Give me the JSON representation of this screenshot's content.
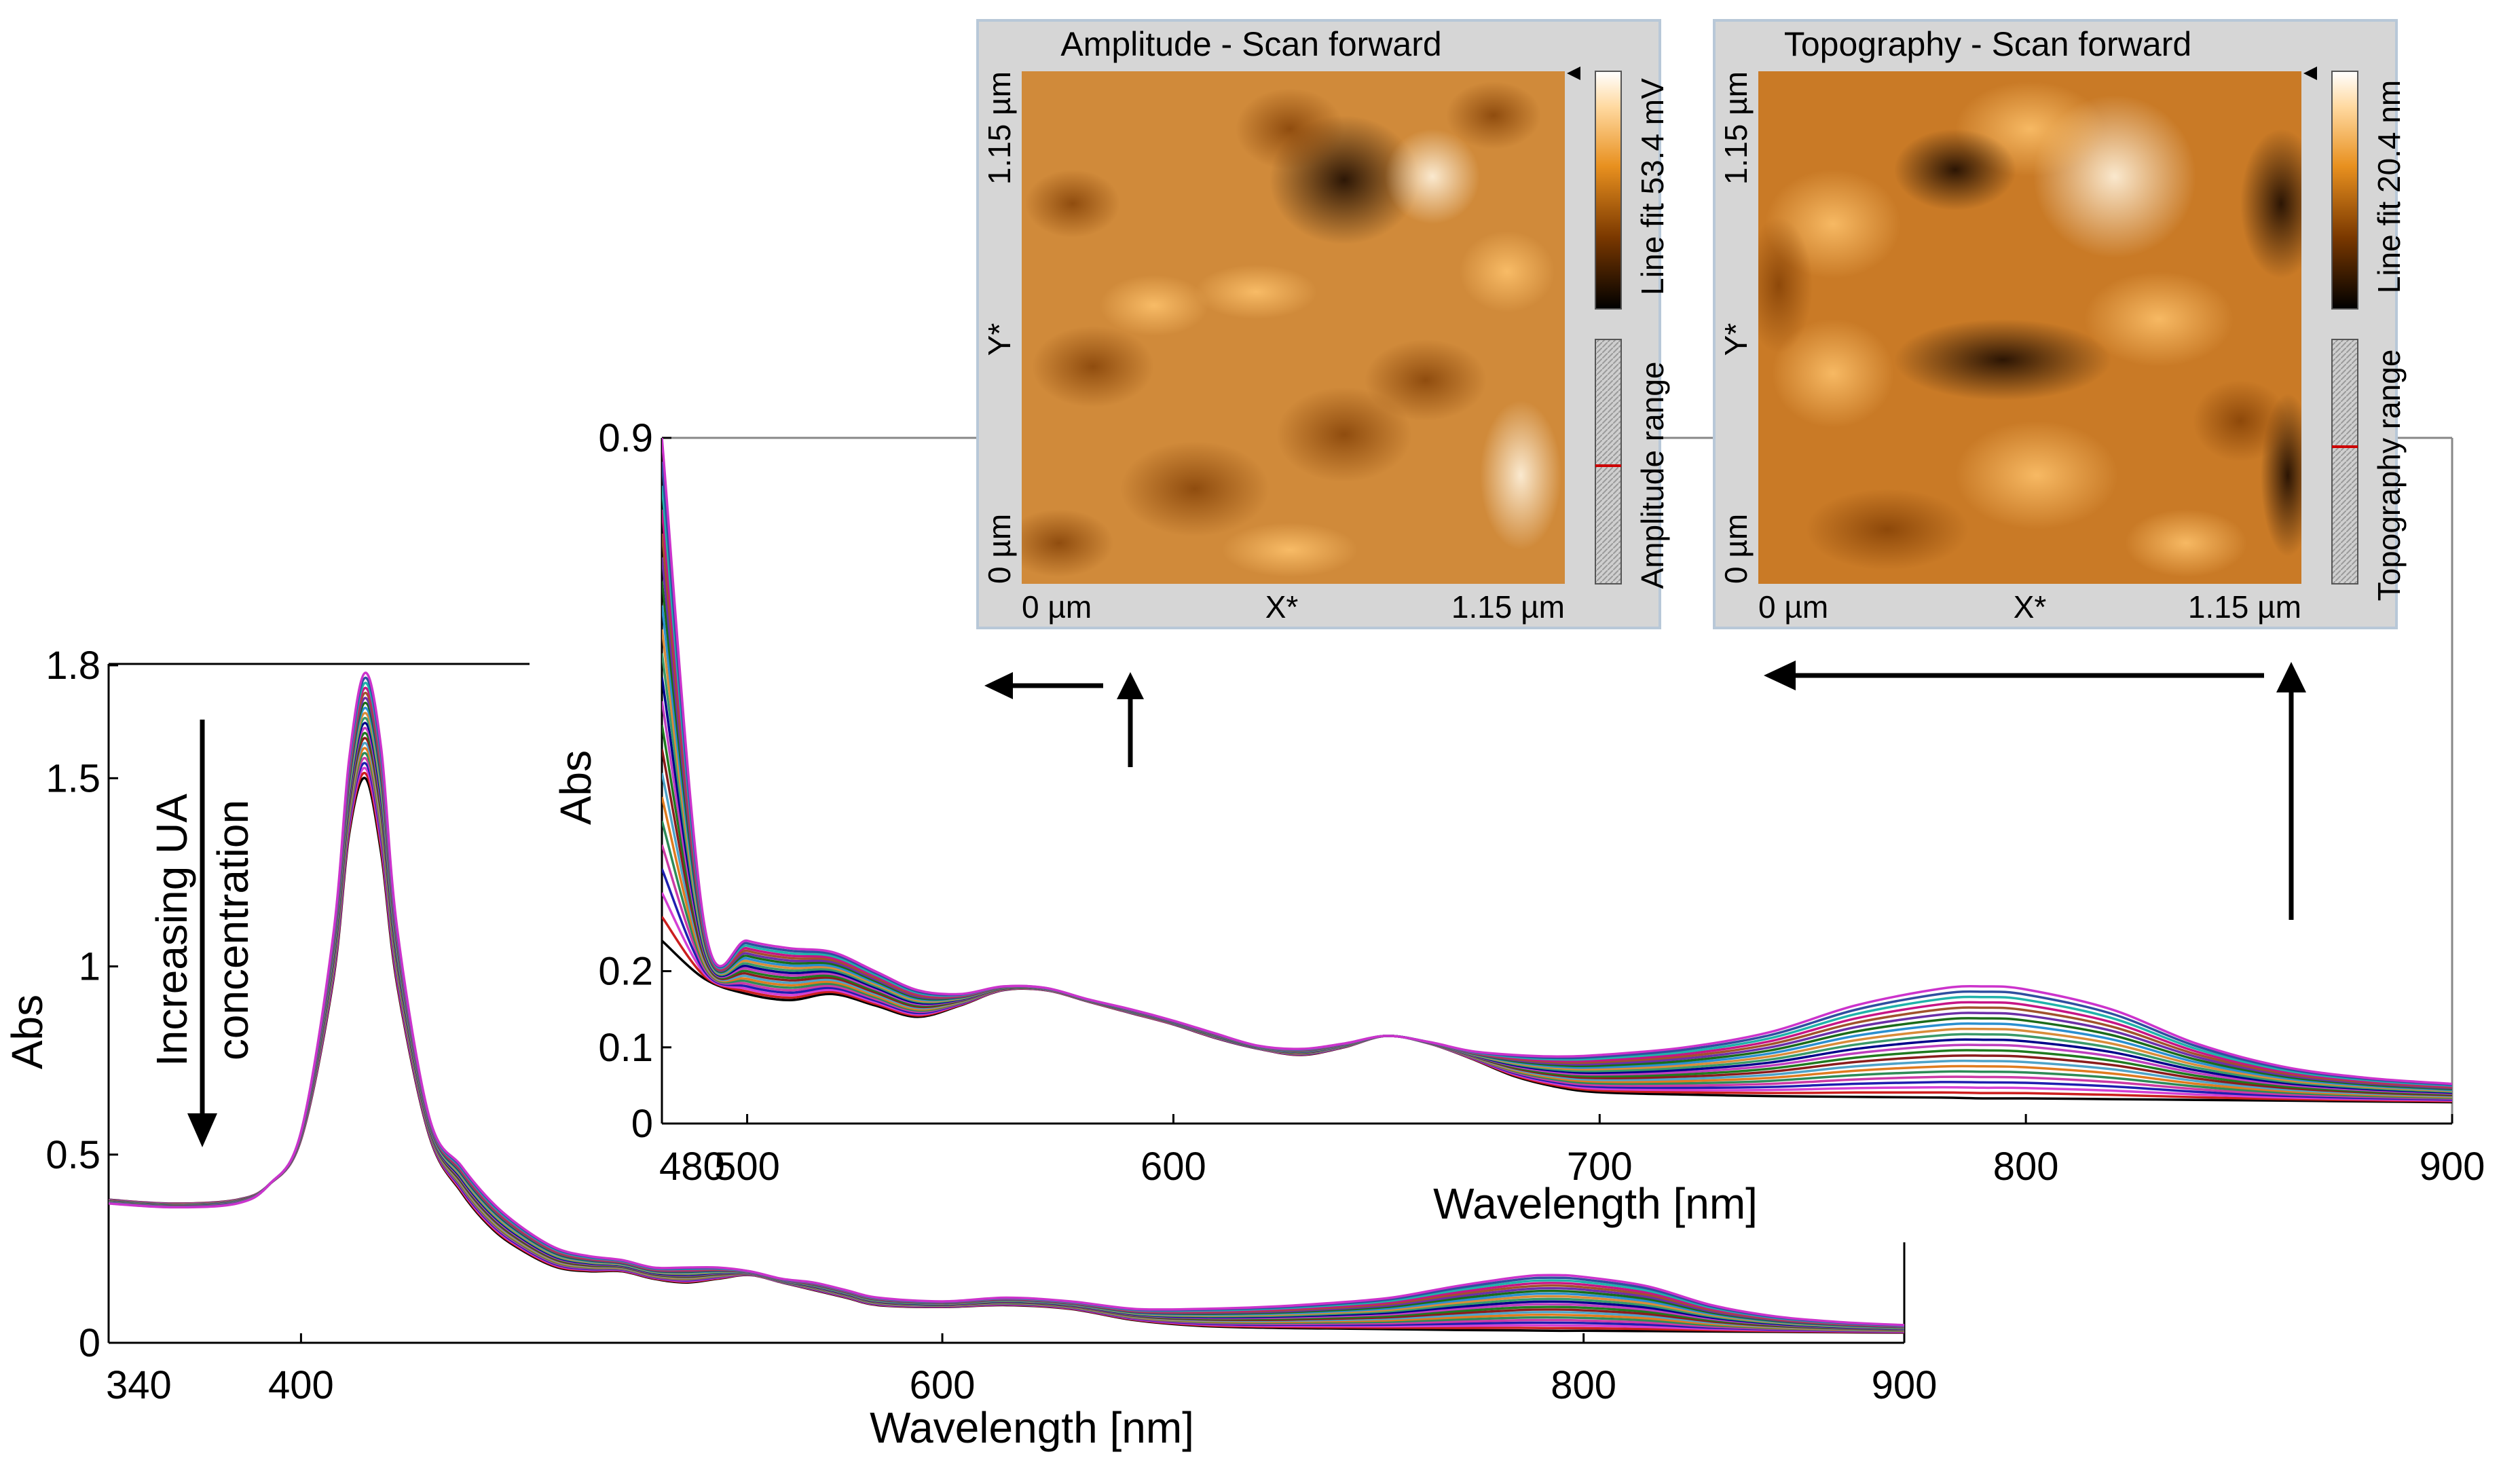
{
  "chart_data": [
    {
      "id": "main",
      "type": "line",
      "xlabel": "Wavelength [nm]",
      "ylabel": "Abs",
      "xlim": [
        340,
        900
      ],
      "ylim": [
        0,
        1.8
      ],
      "xticks": [
        340,
        400,
        600,
        800,
        900
      ],
      "yticks": [
        {
          "v": 0,
          "label": "0"
        },
        {
          "v": 0.5,
          "label": "0.5"
        },
        {
          "v": 1.0,
          "label": "1"
        },
        {
          "v": 1.5,
          "label": "1.5"
        },
        {
          "v": 1.8,
          "label": "1.8"
        }
      ],
      "annotation": [
        "Increasing UA",
        "concentration"
      ],
      "series_count": 22,
      "x": [
        340,
        360,
        380,
        390,
        400,
        410,
        415,
        420,
        425,
        430,
        440,
        450,
        460,
        470,
        480,
        490,
        500,
        510,
        520,
        530,
        540,
        550,
        560,
        570,
        580,
        600,
        620,
        640,
        660,
        680,
        700,
        720,
        740,
        760,
        780,
        790,
        800,
        820,
        840,
        860,
        880,
        900
      ],
      "first_y": [
        0.38,
        0.37,
        0.38,
        0.42,
        0.54,
        0.96,
        1.35,
        1.5,
        1.3,
        0.95,
        0.55,
        0.4,
        0.3,
        0.24,
        0.2,
        0.19,
        0.19,
        0.17,
        0.16,
        0.17,
        0.18,
        0.16,
        0.14,
        0.12,
        0.1,
        0.095,
        0.1,
        0.09,
        0.06,
        0.045,
        0.04,
        0.038,
        0.036,
        0.034,
        0.033,
        0.032,
        0.032,
        0.031,
        0.03,
        0.029,
        0.028,
        0.027
      ],
      "last_y": [
        0.37,
        0.36,
        0.37,
        0.42,
        0.56,
        1.08,
        1.55,
        1.78,
        1.58,
        1.1,
        0.6,
        0.47,
        0.37,
        0.3,
        0.25,
        0.23,
        0.22,
        0.2,
        0.2,
        0.2,
        0.19,
        0.17,
        0.16,
        0.14,
        0.12,
        0.11,
        0.12,
        0.11,
        0.09,
        0.09,
        0.095,
        0.105,
        0.12,
        0.15,
        0.175,
        0.18,
        0.175,
        0.15,
        0.1,
        0.07,
        0.055,
        0.047
      ]
    },
    {
      "id": "inset",
      "type": "line",
      "xlabel": "Wavelength [nm]",
      "ylabel": "Abs",
      "xlim": [
        480,
        900
      ],
      "ylim": [
        0,
        0.9
      ],
      "xticks": [
        480,
        500,
        600,
        700,
        800,
        900
      ],
      "yticks": [
        {
          "v": 0,
          "label": "0"
        },
        {
          "v": 0.1,
          "label": "0.1"
        },
        {
          "v": 0.2,
          "label": "0.2"
        },
        {
          "v": 0.9,
          "label": "0.9"
        }
      ],
      "series_count": 22,
      "x": [
        480,
        490,
        500,
        510,
        520,
        530,
        540,
        550,
        560,
        570,
        580,
        590,
        600,
        610,
        620,
        630,
        640,
        650,
        660,
        670,
        680,
        690,
        700,
        720,
        740,
        760,
        780,
        790,
        800,
        820,
        840,
        860,
        880,
        900
      ],
      "first_y": [
        0.24,
        0.19,
        0.17,
        0.162,
        0.17,
        0.155,
        0.14,
        0.155,
        0.175,
        0.175,
        0.16,
        0.145,
        0.13,
        0.112,
        0.098,
        0.09,
        0.1,
        0.115,
        0.105,
        0.085,
        0.062,
        0.048,
        0.041,
        0.038,
        0.036,
        0.035,
        0.034,
        0.033,
        0.033,
        0.032,
        0.031,
        0.03,
        0.029,
        0.028
      ],
      "last_y": [
        0.9,
        0.26,
        0.24,
        0.23,
        0.225,
        0.2,
        0.175,
        0.17,
        0.18,
        0.178,
        0.163,
        0.15,
        0.135,
        0.118,
        0.102,
        0.098,
        0.105,
        0.115,
        0.107,
        0.095,
        0.09,
        0.088,
        0.09,
        0.1,
        0.12,
        0.155,
        0.177,
        0.18,
        0.176,
        0.15,
        0.105,
        0.075,
        0.06,
        0.052
      ]
    }
  ],
  "colors": [
    "#000000",
    "#cc1f1f",
    "#d43fd4",
    "#1f1fb0",
    "#cc3aa6",
    "#2e8b57",
    "#e07b1f",
    "#4fa3c8",
    "#8b1c1c",
    "#1f7a1f",
    "#bf3fbf",
    "#00008b",
    "#3a9a6a",
    "#d98c3a",
    "#2a8fd0",
    "#1a6b1a",
    "#6b2fa8",
    "#a0522d",
    "#c71585",
    "#20b2aa",
    "#2f4f9f",
    "#cc33cc"
  ],
  "afm": [
    {
      "id": "amplitude",
      "title": "Amplitude - Scan forward",
      "x_start": "0 µm",
      "x_axis": "X*",
      "x_end": "1.15 µm",
      "y_start": "0 µm",
      "y_axis": "Y*",
      "y_end": "1.15 µm",
      "scale_label": "Line fit 53.4 mV",
      "range_label": "Amplitude range"
    },
    {
      "id": "topography",
      "title": "Topography - Scan forward",
      "x_start": "0 µm",
      "x_axis": "X*",
      "x_end": "1.15 µm",
      "y_start": "0 µm",
      "y_axis": "Y*",
      "y_end": "1.15 µm",
      "scale_label": "Line fit 20.4 nm",
      "range_label": "Topography range"
    }
  ]
}
